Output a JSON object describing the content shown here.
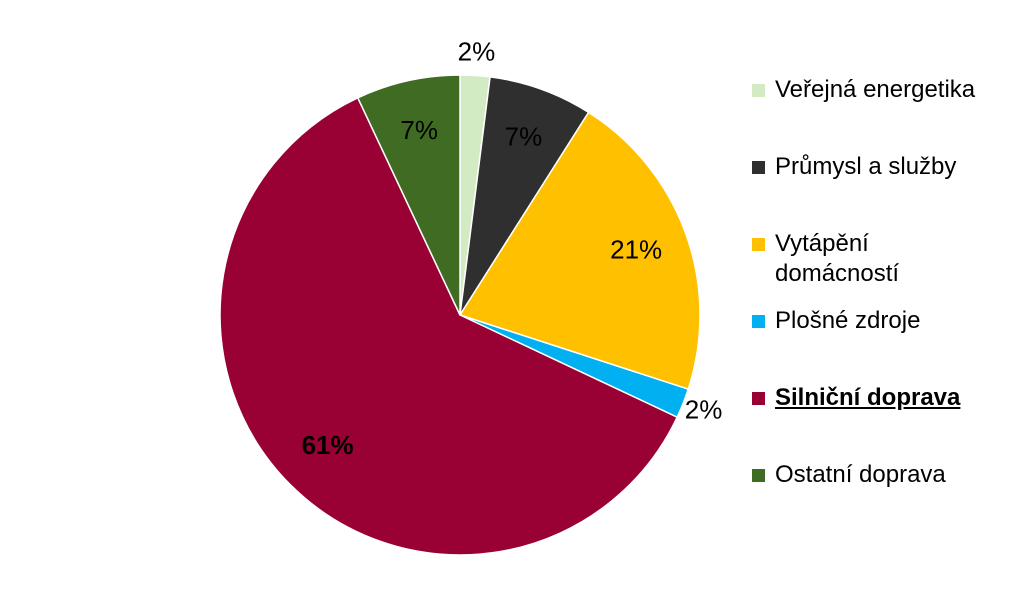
{
  "chart_data": {
    "type": "pie",
    "categories": [
      "Veřejná energetika",
      "Průmysl a služby",
      "Vytápění domácností",
      "Plošné zdroje",
      "Silniční doprava",
      "Ostatní doprava"
    ],
    "values": [
      2,
      7,
      21,
      2,
      61,
      7
    ],
    "value_labels": [
      "2%",
      "7%",
      "21%",
      "2%",
      "61%",
      "7%"
    ],
    "colors": [
      "#d3ebc3",
      "#2f2f2f",
      "#ffc000",
      "#00b0f0",
      "#990033",
      "#3f6b23"
    ],
    "highlight_index": 4,
    "legend": "right"
  }
}
